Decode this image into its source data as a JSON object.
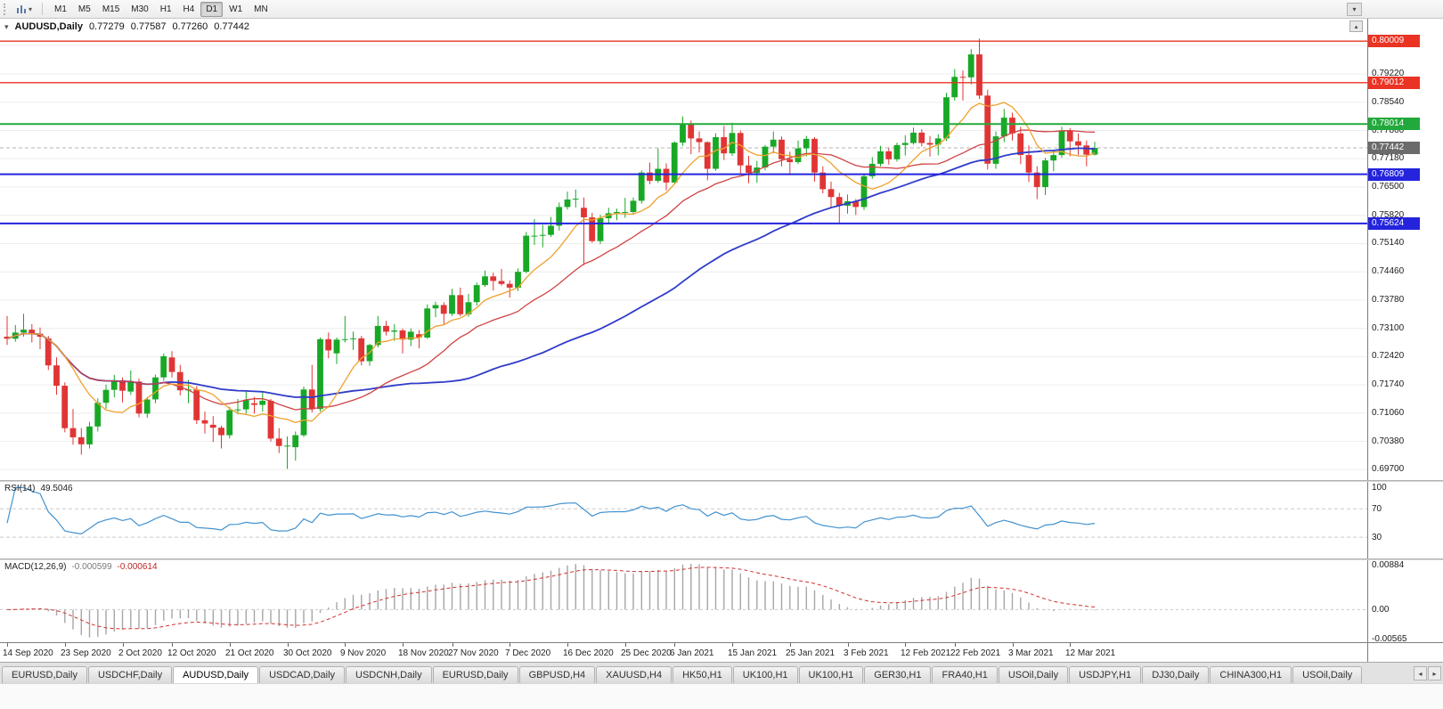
{
  "icons": {
    "caret_down": "▾",
    "scroll_left": "◂",
    "scroll_right": "▸",
    "scroll_end": "▴"
  },
  "toolbar": {
    "timeframes": [
      {
        "label": "M1",
        "active": false
      },
      {
        "label": "M5",
        "active": false
      },
      {
        "label": "M15",
        "active": false
      },
      {
        "label": "M30",
        "active": false
      },
      {
        "label": "H1",
        "active": false
      },
      {
        "label": "H4",
        "active": false
      },
      {
        "label": "D1",
        "active": true
      },
      {
        "label": "W1",
        "active": false
      },
      {
        "label": "MN",
        "active": false
      }
    ]
  },
  "chart": {
    "symbol_period": "AUDUSD,Daily",
    "open": "0.77279",
    "high": "0.77587",
    "low": "0.77260",
    "close": "0.77442"
  },
  "price_scale": {
    "labels": [
      "0.79900",
      "0.79220",
      "0.78540",
      "0.77860",
      "0.77180",
      "0.76500",
      "0.75820",
      "0.75140",
      "0.74460",
      "0.73780",
      "0.73100",
      "0.72420",
      "0.71740",
      "0.71060",
      "0.70380",
      "0.69700"
    ]
  },
  "levels": [
    {
      "label": "0.80009",
      "price": 0.80009,
      "color": "#ea3323",
      "width": 1.3
    },
    {
      "label": "0.79012",
      "price": 0.79012,
      "color": "#ea3323",
      "width": 1.3
    },
    {
      "label": "0.78014",
      "price": 0.78014,
      "color": "#22a93c",
      "width": 2
    },
    {
      "label": "0.76809",
      "price": 0.76809,
      "color": "#2424dd",
      "width": 2
    },
    {
      "label": "0.75624",
      "price": 0.75624,
      "color": "#2424dd",
      "width": 2
    }
  ],
  "current_price": {
    "label": "0.77442",
    "price": 0.77442,
    "box_color": "#6b6b6b"
  },
  "rsi": {
    "name": "RSI(14)",
    "value": "49.5046",
    "period": 14,
    "line_color": "#4292cf",
    "levels": [
      "100",
      "70",
      "30"
    ]
  },
  "macd": {
    "name": "MACD(12,26,9)",
    "value_main": "-0.000599",
    "value_signal": "-0.000614",
    "periods": [
      12,
      26,
      9
    ],
    "scale_labels": [
      "0.00884",
      "0.00",
      "-0.00565"
    ],
    "scale_values": [
      0.00884,
      0,
      -0.00565
    ],
    "histogram_color": "#a6a6a6",
    "signal_color": "#d03030"
  },
  "time_axis": [
    "14 Sep 2020",
    "23 Sep 2020",
    "2 Oct 2020",
    "12 Oct 2020",
    "21 Oct 2020",
    "30 Oct 2020",
    "9 Nov 2020",
    "18 Nov 2020",
    "27 Nov 2020",
    "7 Dec 2020",
    "16 Dec 2020",
    "25 Dec 2020",
    "6 Jan 2021",
    "15 Jan 2021",
    "25 Jan 2021",
    "3 Feb 2021",
    "12 Feb 2021",
    "22 Feb 2021",
    "3 Mar 2021",
    "12 Mar 2021"
  ],
  "tabs": [
    {
      "label": "EURUSD,Daily",
      "active": false
    },
    {
      "label": "USDCHF,Daily",
      "active": false
    },
    {
      "label": "AUDUSD,Daily",
      "active": true
    },
    {
      "label": "USDCAD,Daily",
      "active": false
    },
    {
      "label": "USDCNH,Daily",
      "active": false
    },
    {
      "label": "EURUSD,Daily",
      "active": false
    },
    {
      "label": "GBPUSD,H4",
      "active": false
    },
    {
      "label": "XAUUSD,H4",
      "active": false
    },
    {
      "label": "HK50,H1",
      "active": false
    },
    {
      "label": "UK100,H1",
      "active": false
    },
    {
      "label": "UK100,H1",
      "active": false
    },
    {
      "label": "GER30,H1",
      "active": false
    },
    {
      "label": "FRA40,H1",
      "active": false
    },
    {
      "label": "USOil,Daily",
      "active": false
    },
    {
      "label": "USDJPY,H1",
      "active": false
    },
    {
      "label": "DJ30,Daily",
      "active": false
    },
    {
      "label": "CHINA300,H1",
      "active": false
    },
    {
      "label": "USOil,Daily",
      "active": false
    }
  ],
  "chart_data": {
    "type": "candlestick",
    "symbol": "AUDUSD",
    "timeframe": "Daily",
    "y_range": [
      0.6945,
      0.8055
    ],
    "macd_range": [
      -0.0064,
      0.0097
    ],
    "bull_color": "#18a826",
    "bear_color": "#e03535",
    "overlays": {
      "fast": {
        "period": 8,
        "color": "#efa12e",
        "width": 1.3
      },
      "mid": {
        "period": 20,
        "color": "#cf4343",
        "width": 1.3
      },
      "slow": {
        "period": 50,
        "color": "#2f3cc9",
        "width": 1.8
      }
    },
    "candles": [
      [
        0.729,
        0.734,
        0.727,
        0.7285
      ],
      [
        0.7285,
        0.7318,
        0.7278,
        0.73
      ],
      [
        0.73,
        0.7345,
        0.729,
        0.7307
      ],
      [
        0.7307,
        0.732,
        0.7276,
        0.7297
      ],
      [
        0.7297,
        0.7312,
        0.726,
        0.729
      ],
      [
        0.7286,
        0.7292,
        0.721,
        0.7221
      ],
      [
        0.7221,
        0.724,
        0.715,
        0.7172
      ],
      [
        0.7172,
        0.718,
        0.706,
        0.707
      ],
      [
        0.707,
        0.7116,
        0.703,
        0.7048
      ],
      [
        0.7048,
        0.707,
        0.7006,
        0.7031
      ],
      [
        0.7031,
        0.7085,
        0.7021,
        0.7074
      ],
      [
        0.7074,
        0.7142,
        0.7062,
        0.7131
      ],
      [
        0.7131,
        0.7175,
        0.7117,
        0.7162
      ],
      [
        0.7162,
        0.7198,
        0.7144,
        0.7185
      ],
      [
        0.7185,
        0.7192,
        0.7132,
        0.716
      ],
      [
        0.7158,
        0.7209,
        0.715,
        0.7182
      ],
      [
        0.7182,
        0.719,
        0.7096,
        0.7105
      ],
      [
        0.7105,
        0.7145,
        0.7095,
        0.7139
      ],
      [
        0.7139,
        0.7199,
        0.713,
        0.7192
      ],
      [
        0.7192,
        0.725,
        0.7184,
        0.7243
      ],
      [
        0.724,
        0.7255,
        0.7192,
        0.7205
      ],
      [
        0.7205,
        0.7222,
        0.7149,
        0.7161
      ],
      [
        0.7161,
        0.7186,
        0.713,
        0.7163
      ],
      [
        0.7163,
        0.7171,
        0.708,
        0.7089
      ],
      [
        0.7089,
        0.711,
        0.7057,
        0.7081
      ],
      [
        0.7078,
        0.7099,
        0.7037,
        0.7071
      ],
      [
        0.7071,
        0.7076,
        0.7021,
        0.7053
      ],
      [
        0.7053,
        0.7121,
        0.7045,
        0.7113
      ],
      [
        0.7113,
        0.714,
        0.7103,
        0.7115
      ],
      [
        0.7115,
        0.716,
        0.7105,
        0.7138
      ],
      [
        0.713,
        0.7145,
        0.7105,
        0.7126
      ],
      [
        0.7126,
        0.7158,
        0.711,
        0.7136
      ],
      [
        0.7136,
        0.714,
        0.7038,
        0.7045
      ],
      [
        0.7045,
        0.707,
        0.701,
        0.7027
      ],
      [
        0.7027,
        0.705,
        0.6972,
        0.7028
      ],
      [
        0.7024,
        0.7062,
        0.6992,
        0.7053
      ],
      [
        0.7053,
        0.717,
        0.7049,
        0.7163
      ],
      [
        0.7163,
        0.7222,
        0.7108,
        0.7116
      ],
      [
        0.7116,
        0.7288,
        0.711,
        0.7284
      ],
      [
        0.7284,
        0.73,
        0.7238,
        0.7257
      ],
      [
        0.725,
        0.7288,
        0.7224,
        0.7283
      ],
      [
        0.7283,
        0.734,
        0.7276,
        0.7284
      ],
      [
        0.7284,
        0.7302,
        0.7258,
        0.7286
      ],
      [
        0.7286,
        0.7292,
        0.7221,
        0.7231
      ],
      [
        0.7231,
        0.7273,
        0.722,
        0.727
      ],
      [
        0.727,
        0.734,
        0.7264,
        0.7316
      ],
      [
        0.7316,
        0.7328,
        0.7293,
        0.7302
      ],
      [
        0.7302,
        0.732,
        0.728,
        0.7305
      ],
      [
        0.7305,
        0.731,
        0.725,
        0.7283
      ],
      [
        0.7283,
        0.731,
        0.7267,
        0.7302
      ],
      [
        0.7296,
        0.7306,
        0.7262,
        0.7288
      ],
      [
        0.7288,
        0.7368,
        0.7285,
        0.7358
      ],
      [
        0.7358,
        0.7374,
        0.7337,
        0.7366
      ],
      [
        0.7366,
        0.7373,
        0.7318,
        0.7345
      ],
      [
        0.7345,
        0.7405,
        0.734,
        0.739
      ],
      [
        0.739,
        0.7408,
        0.7339,
        0.7344
      ],
      [
        0.7344,
        0.7393,
        0.7338,
        0.7373
      ],
      [
        0.7373,
        0.742,
        0.7365,
        0.7414
      ],
      [
        0.7414,
        0.7449,
        0.741,
        0.7435
      ],
      [
        0.7435,
        0.7444,
        0.7401,
        0.7424
      ],
      [
        0.7424,
        0.7453,
        0.7413,
        0.7417
      ],
      [
        0.7417,
        0.7425,
        0.7384,
        0.7408
      ],
      [
        0.7408,
        0.7454,
        0.74,
        0.7446
      ],
      [
        0.7446,
        0.7542,
        0.7443,
        0.7533
      ],
      [
        0.7533,
        0.7573,
        0.7511,
        0.7533
      ],
      [
        0.7533,
        0.7559,
        0.7505,
        0.7535
      ],
      [
        0.7535,
        0.7578,
        0.753,
        0.7557
      ],
      [
        0.7557,
        0.7613,
        0.7545,
        0.7602
      ],
      [
        0.7602,
        0.7639,
        0.7596,
        0.762
      ],
      [
        0.762,
        0.7644,
        0.7601,
        0.7622
      ],
      [
        0.76,
        0.7625,
        0.7462,
        0.7577
      ],
      [
        0.7577,
        0.7588,
        0.7516,
        0.752
      ],
      [
        0.752,
        0.7583,
        0.7513,
        0.7575
      ],
      [
        0.7575,
        0.76,
        0.756,
        0.7587
      ],
      [
        0.7587,
        0.7598,
        0.757,
        0.759
      ],
      [
        0.759,
        0.7624,
        0.7576,
        0.759
      ],
      [
        0.759,
        0.7625,
        0.7585,
        0.7617
      ],
      [
        0.7617,
        0.769,
        0.761,
        0.7685
      ],
      [
        0.7685,
        0.7709,
        0.7657,
        0.7665
      ],
      [
        0.7665,
        0.7743,
        0.766,
        0.7694
      ],
      [
        0.7694,
        0.7707,
        0.7642,
        0.7661
      ],
      [
        0.7661,
        0.776,
        0.7658,
        0.7757
      ],
      [
        0.7757,
        0.782,
        0.7749,
        0.7803
      ],
      [
        0.7803,
        0.781,
        0.7729,
        0.7767
      ],
      [
        0.7767,
        0.7784,
        0.7733,
        0.7758
      ],
      [
        0.7758,
        0.776,
        0.7666,
        0.7694
      ],
      [
        0.7694,
        0.7779,
        0.7689,
        0.777
      ],
      [
        0.777,
        0.7797,
        0.7715,
        0.7731
      ],
      [
        0.7731,
        0.7805,
        0.7725,
        0.778
      ],
      [
        0.778,
        0.7786,
        0.7679,
        0.7702
      ],
      [
        0.7702,
        0.7725,
        0.7659,
        0.7684
      ],
      [
        0.7684,
        0.7713,
        0.766,
        0.7697
      ],
      [
        0.7697,
        0.7751,
        0.769,
        0.7747
      ],
      [
        0.7747,
        0.7784,
        0.7731,
        0.7764
      ],
      [
        0.7764,
        0.7772,
        0.77,
        0.7717
      ],
      [
        0.7717,
        0.7735,
        0.768,
        0.771
      ],
      [
        0.771,
        0.7762,
        0.7705,
        0.7743
      ],
      [
        0.7743,
        0.7773,
        0.7724,
        0.7766
      ],
      [
        0.7766,
        0.777,
        0.7663,
        0.7685
      ],
      [
        0.7685,
        0.77,
        0.7635,
        0.7645
      ],
      [
        0.7645,
        0.7663,
        0.76,
        0.7626
      ],
      [
        0.7626,
        0.7636,
        0.7563,
        0.7605
      ],
      [
        0.7605,
        0.7632,
        0.7586,
        0.7616
      ],
      [
        0.7616,
        0.7621,
        0.7583,
        0.7602
      ],
      [
        0.7602,
        0.768,
        0.7595,
        0.7676
      ],
      [
        0.7676,
        0.7722,
        0.767,
        0.7706
      ],
      [
        0.7706,
        0.7749,
        0.77,
        0.7736
      ],
      [
        0.7736,
        0.7745,
        0.7704,
        0.7717
      ],
      [
        0.7717,
        0.7757,
        0.7711,
        0.7751
      ],
      [
        0.7751,
        0.7775,
        0.7726,
        0.7756
      ],
      [
        0.7756,
        0.7793,
        0.7752,
        0.7781
      ],
      [
        0.7781,
        0.7789,
        0.7748,
        0.7756
      ],
      [
        0.7756,
        0.7773,
        0.7723,
        0.7752
      ],
      [
        0.7752,
        0.7777,
        0.7726,
        0.7767
      ],
      [
        0.7767,
        0.7877,
        0.7761,
        0.7866
      ],
      [
        0.7866,
        0.7934,
        0.7858,
        0.7915
      ],
      [
        0.7915,
        0.793,
        0.7858,
        0.7914
      ],
      [
        0.7914,
        0.7982,
        0.7897,
        0.7969
      ],
      [
        0.7969,
        0.8007,
        0.7862,
        0.787
      ],
      [
        0.787,
        0.7884,
        0.7692,
        0.7706
      ],
      [
        0.7706,
        0.7784,
        0.7694,
        0.7772
      ],
      [
        0.7772,
        0.7838,
        0.7758,
        0.7817
      ],
      [
        0.7817,
        0.7829,
        0.7762,
        0.7779
      ],
      [
        0.7779,
        0.7795,
        0.7705,
        0.7727
      ],
      [
        0.7727,
        0.775,
        0.7662,
        0.7685
      ],
      [
        0.7685,
        0.77,
        0.7621,
        0.765
      ],
      [
        0.765,
        0.772,
        0.7631,
        0.7714
      ],
      [
        0.7714,
        0.7739,
        0.7688,
        0.7727
      ],
      [
        0.7727,
        0.7795,
        0.772,
        0.7785
      ],
      [
        0.7785,
        0.7792,
        0.7724,
        0.776
      ],
      [
        0.776,
        0.7779,
        0.7727,
        0.775
      ],
      [
        0.775,
        0.7762,
        0.77,
        0.7728
      ],
      [
        0.77279,
        0.77587,
        0.7726,
        0.77442
      ]
    ]
  }
}
